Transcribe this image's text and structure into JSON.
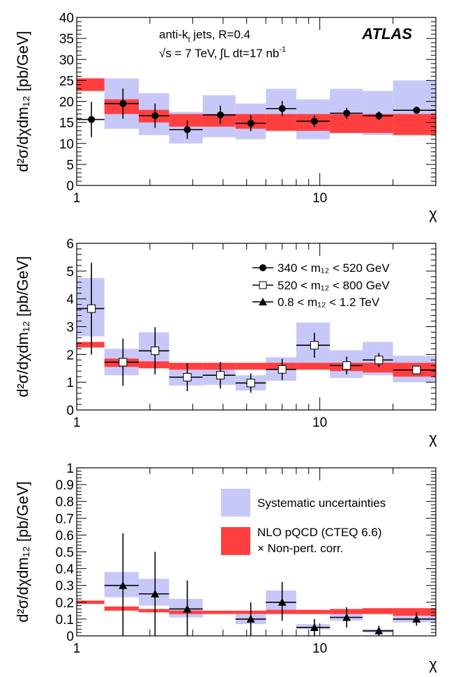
{
  "figure": {
    "experiment": "ATLAS",
    "annotation_line1": "anti-k",
    "annotation_line1_sub": "t",
    "annotation_line1_rest": " jets,  R=0.4",
    "annotation_line2_energy": "√s = 7 TeV,",
    "annotation_line2_lumi": "∫L dt=17 nb",
    "annotation_line2_lumi_exp": "-1",
    "ylabel": "d²σ/dχdm₁₂ [pb/GeV]",
    "xlabel": "χ",
    "x_tick_labels": [
      "1",
      "10"
    ]
  },
  "colors": {
    "systematic_band": "#c8c8f8",
    "nlo_band": "#ff3f3f",
    "markers": "#000000"
  },
  "legend": {
    "series": [
      {
        "label": "340 < m₁₂ < 520 GeV",
        "marker": "circle"
      },
      {
        "label": "520 < m₁₂ < 800 GeV",
        "marker": "open-square"
      },
      {
        "label": "0.8  < m₁₂  < 1.2 TeV",
        "marker": "triangle"
      }
    ],
    "bands": [
      {
        "label": "Systematic uncertainties",
        "kind": "systematic"
      },
      {
        "label": "NLO pQCD (CTEQ 6.6)",
        "label2": "× Non-pert. corr.",
        "kind": "nlo"
      }
    ]
  },
  "chart_data": [
    {
      "type": "scatter",
      "title": "340 < m12 < 520 GeV",
      "xlabel": "χ",
      "ylabel": "d²σ/dχdm₁₂ [pb/GeV]",
      "xscale": "log",
      "xlim": [
        1,
        30
      ],
      "ylim": [
        0,
        40
      ],
      "yticks": [
        0,
        5,
        10,
        15,
        20,
        25,
        30,
        35,
        40
      ],
      "marker": "circle",
      "bins": [
        [
          1.0,
          1.3
        ],
        [
          1.3,
          1.8
        ],
        [
          1.8,
          2.4
        ],
        [
          2.4,
          3.3
        ],
        [
          3.3,
          4.5
        ],
        [
          4.5,
          6.0
        ],
        [
          6.0,
          8.0
        ],
        [
          8.0,
          11.0
        ],
        [
          11.0,
          15.0
        ],
        [
          15.0,
          20.0
        ],
        [
          20.0,
          30.0
        ]
      ],
      "x": [
        1.15,
        1.55,
        2.1,
        2.85,
        3.9,
        5.2,
        7.0,
        9.5,
        12.9,
        17.5,
        25.0
      ],
      "y": [
        15.7,
        19.5,
        16.6,
        13.3,
        16.8,
        14.8,
        18.3,
        15.3,
        17.2,
        16.6,
        17.9
      ],
      "y_err_low": [
        4.2,
        3.6,
        2.9,
        2.2,
        2.2,
        1.9,
        1.8,
        1.4,
        1.3,
        1.0,
        0.8
      ],
      "y_err_high": [
        4.2,
        3.6,
        2.9,
        2.2,
        2.2,
        1.9,
        1.8,
        1.4,
        1.3,
        1.0,
        0.8
      ],
      "systematic_band": [
        null,
        [
          13.5,
          25.5
        ],
        [
          12.0,
          22.0
        ],
        [
          10.0,
          17.5
        ],
        [
          11.5,
          21.5
        ],
        [
          11.0,
          19.5
        ],
        [
          13.0,
          23.0
        ],
        [
          11.0,
          20.5
        ],
        [
          12.5,
          23.0
        ],
        [
          12.0,
          22.5
        ],
        [
          13.5,
          25.0
        ]
      ],
      "nlo_band": [
        [
          22.5,
          25.5
        ],
        [
          17.0,
          20.5
        ],
        [
          15.0,
          18.0
        ],
        [
          14.0,
          17.0
        ],
        [
          14.0,
          17.0
        ],
        [
          13.5,
          17.0
        ],
        [
          13.0,
          17.0
        ],
        [
          13.0,
          17.0
        ],
        [
          12.5,
          17.0
        ],
        [
          12.5,
          17.0
        ],
        [
          12.0,
          17.0
        ]
      ]
    },
    {
      "type": "scatter",
      "title": "520 < m12 < 800 GeV",
      "xlabel": "χ",
      "ylabel": "d²σ/dχdm₁₂ [pb/GeV]",
      "xscale": "log",
      "xlim": [
        1,
        30
      ],
      "ylim": [
        0,
        6
      ],
      "yticks": [
        0,
        1,
        2,
        3,
        4,
        5,
        6
      ],
      "marker": "open-square",
      "bins": [
        [
          1.0,
          1.3
        ],
        [
          1.3,
          1.8
        ],
        [
          1.8,
          2.4
        ],
        [
          2.4,
          3.3
        ],
        [
          3.3,
          4.5
        ],
        [
          4.5,
          6.0
        ],
        [
          6.0,
          8.0
        ],
        [
          8.0,
          11.0
        ],
        [
          11.0,
          15.0
        ],
        [
          15.0,
          20.0
        ],
        [
          20.0,
          30.0
        ]
      ],
      "x": [
        1.15,
        1.55,
        2.1,
        2.85,
        3.9,
        5.2,
        7.0,
        9.5,
        12.9,
        17.5,
        25.0
      ],
      "y": [
        3.65,
        1.72,
        2.13,
        1.18,
        1.25,
        0.97,
        1.46,
        2.33,
        1.6,
        1.8,
        1.44
      ],
      "y_err_low": [
        1.65,
        0.85,
        0.85,
        0.5,
        0.48,
        0.35,
        0.38,
        0.45,
        0.32,
        0.25,
        0.15
      ],
      "y_err_high": [
        1.65,
        0.85,
        0.85,
        0.5,
        0.48,
        0.35,
        0.38,
        0.45,
        0.32,
        0.25,
        0.15
      ],
      "systematic_band": [
        [
          2.65,
          4.75
        ],
        [
          1.25,
          2.2
        ],
        [
          1.5,
          2.8
        ],
        [
          0.88,
          1.5
        ],
        [
          0.9,
          1.6
        ],
        [
          0.7,
          1.25
        ],
        [
          1.05,
          1.9
        ],
        [
          1.6,
          3.15
        ],
        [
          1.15,
          2.15
        ],
        [
          1.25,
          2.45
        ],
        [
          1.0,
          1.95
        ]
      ],
      "nlo_band": [
        [
          2.25,
          2.45
        ],
        [
          1.55,
          1.85
        ],
        [
          1.5,
          1.75
        ],
        [
          1.45,
          1.7
        ],
        [
          1.45,
          1.7
        ],
        [
          1.45,
          1.7
        ],
        [
          1.45,
          1.7
        ],
        [
          1.45,
          1.7
        ],
        [
          1.4,
          1.7
        ],
        [
          1.35,
          1.7
        ],
        [
          1.2,
          1.7
        ]
      ]
    },
    {
      "type": "scatter",
      "title": "0.8 < m12 < 1.2 TeV",
      "xlabel": "χ",
      "ylabel": "d²σ/dχdm₁₂ [pb/GeV]",
      "xscale": "log",
      "xlim": [
        1,
        30
      ],
      "ylim": [
        0,
        1
      ],
      "yticks": [
        0,
        0.1,
        0.2,
        0.3,
        0.4,
        0.5,
        0.6,
        0.7,
        0.8,
        0.9,
        1
      ],
      "marker": "triangle",
      "bins": [
        [
          1.0,
          1.3
        ],
        [
          1.3,
          1.8
        ],
        [
          1.8,
          2.4
        ],
        [
          2.4,
          3.3
        ],
        [
          3.3,
          4.5
        ],
        [
          4.5,
          6.0
        ],
        [
          6.0,
          8.0
        ],
        [
          8.0,
          11.0
        ],
        [
          11.0,
          15.0
        ],
        [
          15.0,
          20.0
        ],
        [
          20.0,
          30.0
        ]
      ],
      "x": [
        null,
        1.55,
        2.1,
        2.85,
        null,
        5.2,
        7.0,
        9.5,
        12.9,
        17.5,
        25.0
      ],
      "y": [
        null,
        0.3,
        0.25,
        0.16,
        null,
        0.1,
        0.2,
        0.05,
        0.11,
        0.03,
        0.1
      ],
      "y_err_low": [
        null,
        0.3,
        0.25,
        0.16,
        null,
        0.1,
        0.11,
        0.05,
        0.06,
        0.03,
        0.04
      ],
      "y_err_high": [
        null,
        0.31,
        0.25,
        0.17,
        null,
        0.1,
        0.12,
        0.05,
        0.06,
        0.03,
        0.04
      ],
      "systematic_band": [
        null,
        [
          0.23,
          0.38
        ],
        [
          0.18,
          0.34
        ],
        [
          0.11,
          0.22
        ],
        null,
        [
          0.07,
          0.13
        ],
        [
          0.15,
          0.27
        ],
        [
          0.04,
          0.07
        ],
        [
          0.09,
          0.14
        ],
        [
          0.02,
          0.04
        ],
        [
          0.08,
          0.13
        ]
      ],
      "nlo_band": [
        [
          0.19,
          0.21
        ],
        [
          0.15,
          0.175
        ],
        [
          0.14,
          0.16
        ],
        [
          0.13,
          0.15
        ],
        [
          0.13,
          0.15
        ],
        [
          0.13,
          0.15
        ],
        [
          0.13,
          0.155
        ],
        [
          0.13,
          0.155
        ],
        [
          0.13,
          0.16
        ],
        [
          0.13,
          0.165
        ],
        [
          0.12,
          0.165
        ]
      ]
    }
  ]
}
